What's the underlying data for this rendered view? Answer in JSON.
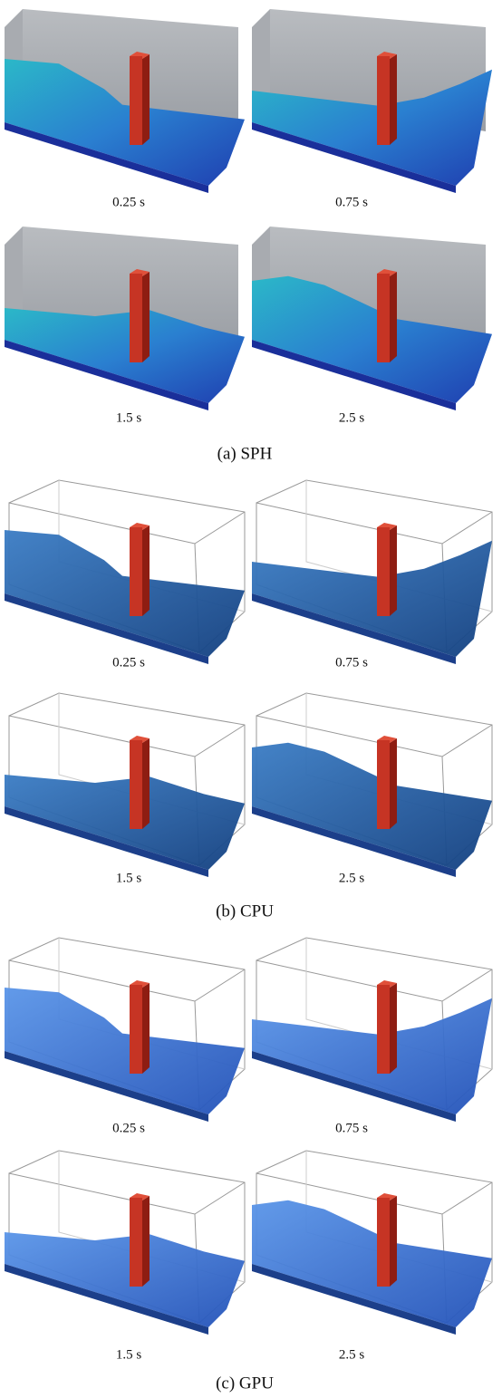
{
  "panels": [
    {
      "caption": "(a) SPH",
      "frames": [
        "0.25 s",
        "0.75 s",
        "1.5 s",
        "2.5 s"
      ]
    },
    {
      "caption": "(b) CPU",
      "frames": [
        "0.25 s",
        "0.75 s",
        "1.5 s",
        "2.5 s"
      ]
    },
    {
      "caption": "(c) GPU",
      "frames": [
        "0.25 s",
        "0.75 s",
        "1.5 s",
        "2.5 s"
      ]
    }
  ]
}
